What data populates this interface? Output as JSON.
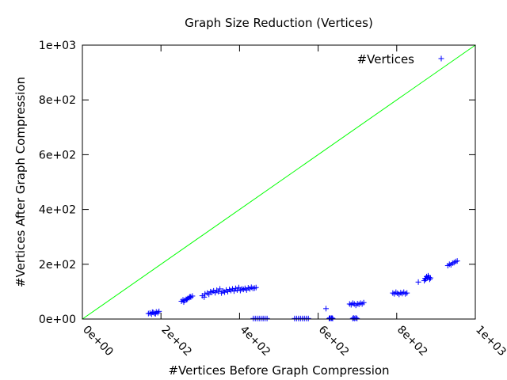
{
  "chart_data": {
    "type": "scatter",
    "title": "Graph Size Reduction (Vertices)",
    "xlabel": "#Vertices Before Graph Compression",
    "ylabel": "#Vertices After Graph Compression",
    "xlim": [
      0,
      1000
    ],
    "ylim": [
      0,
      1000
    ],
    "x_ticks": [
      0,
      200,
      400,
      600,
      800,
      1000
    ],
    "x_tick_labels": [
      "0e+00",
      "2e+02",
      "4e+02",
      "6e+02",
      "8e+02",
      "1e+03"
    ],
    "y_ticks": [
      0,
      200,
      400,
      600,
      800,
      1000
    ],
    "y_tick_labels": [
      "0e+00",
      "2e+02",
      "4e+02",
      "6e+02",
      "8e+02",
      "1e+03"
    ],
    "grid": false,
    "legend_position": "top-right",
    "series": [
      {
        "name": "#Vertices",
        "marker": "plus",
        "color": "#0000ff",
        "points": [
          [
            168,
            20
          ],
          [
            172,
            22
          ],
          [
            176,
            18
          ],
          [
            180,
            24
          ],
          [
            184,
            21
          ],
          [
            188,
            26
          ],
          [
            192,
            23
          ],
          [
            195,
            28
          ],
          [
            178,
            25
          ],
          [
            186,
            19
          ],
          [
            252,
            65
          ],
          [
            256,
            70
          ],
          [
            260,
            68
          ],
          [
            264,
            72
          ],
          [
            268,
            75
          ],
          [
            272,
            78
          ],
          [
            276,
            80
          ],
          [
            280,
            84
          ],
          [
            258,
            62
          ],
          [
            266,
            71
          ],
          [
            274,
            82
          ],
          [
            305,
            85
          ],
          [
            310,
            80
          ],
          [
            312,
            92
          ],
          [
            318,
            95
          ],
          [
            322,
            90
          ],
          [
            326,
            100
          ],
          [
            330,
            98
          ],
          [
            334,
            103
          ],
          [
            338,
            96
          ],
          [
            342,
            105
          ],
          [
            346,
            100
          ],
          [
            350,
            110
          ],
          [
            354,
            95
          ],
          [
            358,
            102
          ],
          [
            362,
            98
          ],
          [
            366,
            106
          ],
          [
            370,
            100
          ],
          [
            374,
            108
          ],
          [
            378,
            104
          ],
          [
            382,
            110
          ],
          [
            386,
            102
          ],
          [
            390,
            112
          ],
          [
            394,
            106
          ],
          [
            398,
            115
          ],
          [
            402,
            104
          ],
          [
            406,
            110
          ],
          [
            410,
            108
          ],
          [
            414,
            112
          ],
          [
            418,
            106
          ],
          [
            422,
            114
          ],
          [
            426,
            110
          ],
          [
            430,
            116
          ],
          [
            434,
            112
          ],
          [
            438,
            113
          ],
          [
            442,
            115
          ],
          [
            435,
            2
          ],
          [
            440,
            2
          ],
          [
            445,
            2
          ],
          [
            450,
            2
          ],
          [
            455,
            2
          ],
          [
            460,
            2
          ],
          [
            465,
            2
          ],
          [
            470,
            2
          ],
          [
            540,
            2
          ],
          [
            545,
            2
          ],
          [
            550,
            2
          ],
          [
            555,
            2
          ],
          [
            560,
            2
          ],
          [
            565,
            2
          ],
          [
            570,
            2
          ],
          [
            575,
            2
          ],
          [
            620,
            38
          ],
          [
            628,
            2
          ],
          [
            630,
            4
          ],
          [
            633,
            2
          ],
          [
            635,
            4
          ],
          [
            637,
            2
          ],
          [
            680,
            55
          ],
          [
            684,
            52
          ],
          [
            688,
            58
          ],
          [
            692,
            55
          ],
          [
            696,
            50
          ],
          [
            700,
            56
          ],
          [
            704,
            54
          ],
          [
            708,
            58
          ],
          [
            712,
            55
          ],
          [
            716,
            60
          ],
          [
            688,
            2
          ],
          [
            690,
            4
          ],
          [
            693,
            2
          ],
          [
            696,
            4
          ],
          [
            699,
            2
          ],
          [
            790,
            95
          ],
          [
            794,
            92
          ],
          [
            798,
            98
          ],
          [
            802,
            94
          ],
          [
            806,
            90
          ],
          [
            810,
            96
          ],
          [
            814,
            93
          ],
          [
            818,
            98
          ],
          [
            822,
            92
          ],
          [
            826,
            95
          ],
          [
            855,
            135
          ],
          [
            870,
            140
          ],
          [
            872,
            148
          ],
          [
            874,
            145
          ],
          [
            876,
            155
          ],
          [
            878,
            150
          ],
          [
            880,
            158
          ],
          [
            882,
            152
          ],
          [
            884,
            145
          ],
          [
            886,
            150
          ],
          [
            930,
            195
          ],
          [
            934,
            200
          ],
          [
            938,
            198
          ],
          [
            942,
            204
          ],
          [
            946,
            206
          ],
          [
            950,
            210
          ],
          [
            954,
            212
          ]
        ]
      },
      {
        "name": "",
        "type": "line",
        "color": "#00ff00",
        "points": [
          [
            0,
            0
          ],
          [
            1000,
            1000
          ]
        ]
      }
    ]
  }
}
